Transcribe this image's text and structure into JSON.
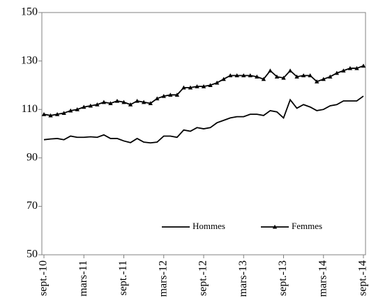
{
  "chart_data": {
    "type": "line",
    "categories": [
      "sept.-10",
      null,
      null,
      null,
      null,
      null,
      "mars-11",
      null,
      null,
      null,
      null,
      null,
      "sept.-11",
      null,
      null,
      null,
      null,
      null,
      "mars-12",
      null,
      null,
      null,
      null,
      null,
      "sept.-12",
      null,
      null,
      null,
      null,
      null,
      "mars-13",
      null,
      null,
      null,
      null,
      null,
      "sept.-13",
      null,
      null,
      null,
      null,
      null,
      "mars-14",
      null,
      null,
      null,
      null,
      null,
      "sept.-14"
    ],
    "series": [
      {
        "name": "Hommes",
        "color": "#000000",
        "marker": "none",
        "values": [
          97.5,
          97.8,
          98,
          97.5,
          99,
          98.5,
          98.5,
          98.7,
          98.5,
          99.5,
          98,
          98,
          97,
          96.3,
          98,
          96.5,
          96.2,
          96.5,
          99,
          99,
          98.5,
          101.5,
          101,
          102.5,
          102,
          102.5,
          104.5,
          105.5,
          106.5,
          107,
          107,
          108,
          108,
          107.5,
          109.5,
          109,
          106.5,
          114,
          110.5,
          112,
          111,
          109.5,
          110,
          111.5,
          112,
          113.5,
          113.5,
          113.5,
          115.5
        ]
      },
      {
        "name": "Femmes",
        "color": "#000000",
        "marker": "triangle",
        "values": [
          108,
          107.5,
          108,
          108.5,
          109.5,
          110,
          111,
          111.5,
          112,
          113,
          112.5,
          113.5,
          113,
          112,
          113.5,
          113,
          112.5,
          114.5,
          115.5,
          116,
          116,
          119,
          119,
          119.5,
          119.5,
          120,
          121,
          122.5,
          124,
          124,
          124,
          124,
          123.5,
          122.5,
          126,
          123.5,
          123,
          126,
          123.5,
          124,
          124,
          121.5,
          122.5,
          123.5,
          125,
          126,
          127,
          127,
          128
        ]
      }
    ],
    "ylim": [
      50,
      150
    ],
    "yticks": [
      50,
      70,
      90,
      110,
      130,
      150
    ],
    "grid": false,
    "legend": "lower right"
  }
}
